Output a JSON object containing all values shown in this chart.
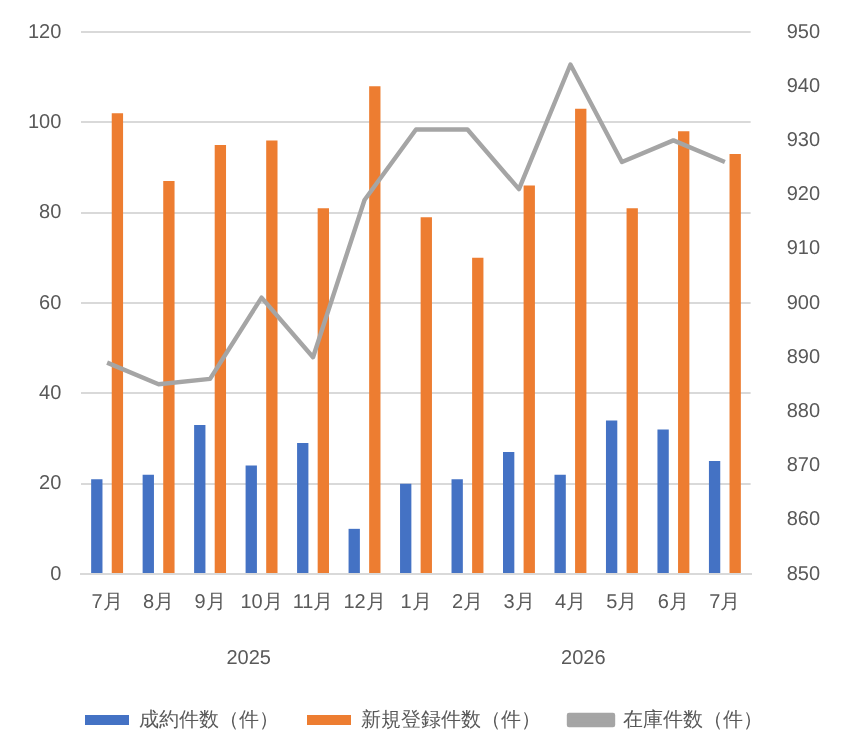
{
  "chart_data": {
    "type": "bar",
    "categories": [
      "7月",
      "8月",
      "9月",
      "10月",
      "11月",
      "12月",
      "1月",
      "2月",
      "3月",
      "4月",
      "5月",
      "6月",
      "7月"
    ],
    "series": [
      {
        "name": "成約件数（件）",
        "color": "#4472c4",
        "values": [
          21,
          22,
          33,
          24,
          29,
          10,
          20,
          21,
          27,
          22,
          34,
          32,
          25
        ]
      },
      {
        "name": "新規登録件数（件）",
        "color": "#ed7d31",
        "values": [
          102,
          87,
          95,
          96,
          81,
          108,
          79,
          70,
          86,
          103,
          81,
          98,
          93
        ]
      },
      {
        "name": "在庫件数（件）",
        "color": "#a5a5a5",
        "type": "line",
        "axis": "y2",
        "values": [
          889,
          885,
          886,
          901,
          890,
          919,
          932,
          932,
          921,
          944,
          926,
          930,
          926
        ]
      }
    ],
    "ylim": [
      0,
      120
    ],
    "yticks": [
      0,
      20,
      40,
      60,
      80,
      100,
      120
    ],
    "y2lim": [
      850,
      950
    ],
    "y2ticks": [
      850,
      860,
      870,
      880,
      890,
      900,
      910,
      920,
      930,
      940,
      950
    ],
    "annotations": [
      "2025",
      "2026"
    ],
    "grid": "y",
    "legend": "bottom",
    "marker": "none"
  }
}
